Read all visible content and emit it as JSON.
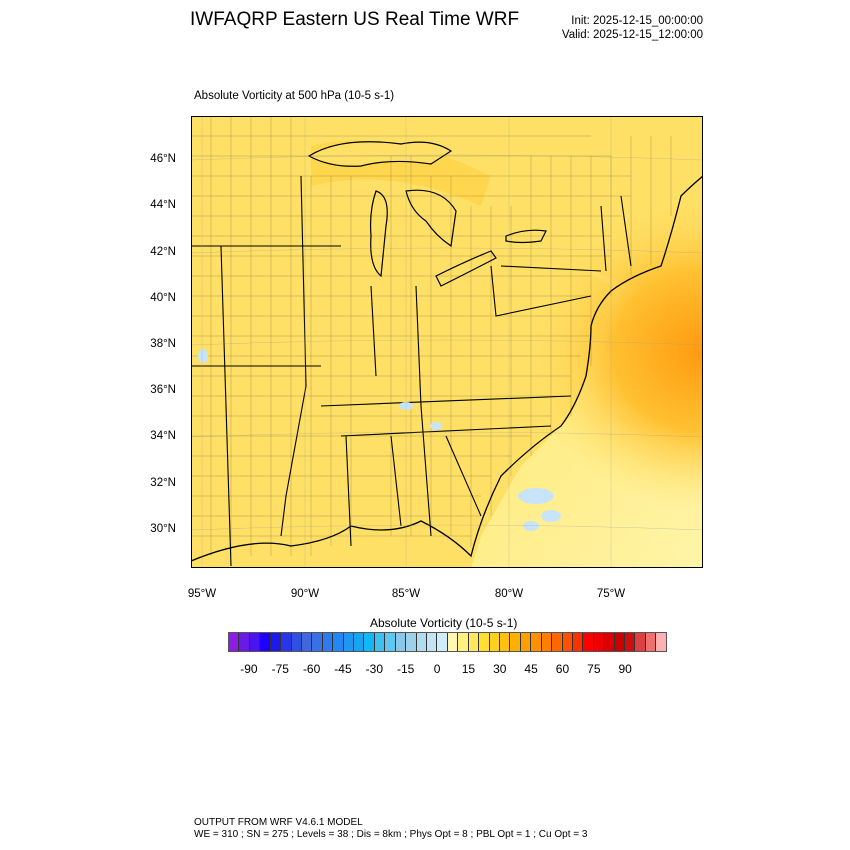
{
  "header": {
    "title": "IWFAQRP Eastern US Real Time WRF",
    "init": "Init: 2025-12-15_00:00:00",
    "valid": "Valid: 2025-12-15_12:00:00"
  },
  "plot": {
    "subtitle": "Absolute Vorticity at 500 hPa   (10-5 s-1)",
    "lat_labels": [
      "46°N",
      "44°N",
      "42°N",
      "40°N",
      "38°N",
      "36°N",
      "34°N",
      "32°N",
      "30°N"
    ],
    "lon_labels": [
      "95°W",
      "90°W",
      "85°W",
      "80°W",
      "75°W"
    ],
    "base_color": "#ffe066",
    "high_color": "#ffa020",
    "water_color": "#c8e4f8"
  },
  "colorbar": {
    "title": "Absolute Vorticity  (10-5 s-1)",
    "labels": [
      "-90",
      "-75",
      "-60",
      "-45",
      "-30",
      "-15",
      "0",
      "15",
      "30",
      "45",
      "60",
      "75",
      "90"
    ],
    "colors": [
      "#8a1ee8",
      "#6a1ae8",
      "#4a14ee",
      "#1e00ff",
      "#1a1af0",
      "#2a34e8",
      "#3050e0",
      "#4068dc",
      "#3a70e6",
      "#2c7cf0",
      "#2288f6",
      "#1e96f4",
      "#16a4f0",
      "#10b8f8",
      "#40c0f0",
      "#60c8f0",
      "#88c8e8",
      "#9ed0ea",
      "#b0dcf2",
      "#c4e4f4",
      "#d0ecf8",
      "#fff8b0",
      "#fff080",
      "#ffe860",
      "#ffe030",
      "#ffd020",
      "#ffc010",
      "#ffb000",
      "#ffa000",
      "#ff9000",
      "#ff8000",
      "#ff6800",
      "#ff5000",
      "#ff3000",
      "#ff0000",
      "#ee0000",
      "#dd0000",
      "#cc0000",
      "#cc1010",
      "#dd4040",
      "#ee7070",
      "#ffb0b0"
    ]
  },
  "footer": {
    "line1": "OUTPUT FROM WRF V4.6.1 MODEL",
    "line2": "WE = 310 ; SN = 275 ; Levels = 38 ; Dis = 8km ; Phys Opt = 8 ; PBL Opt = 1 ; Cu Opt = 3"
  }
}
